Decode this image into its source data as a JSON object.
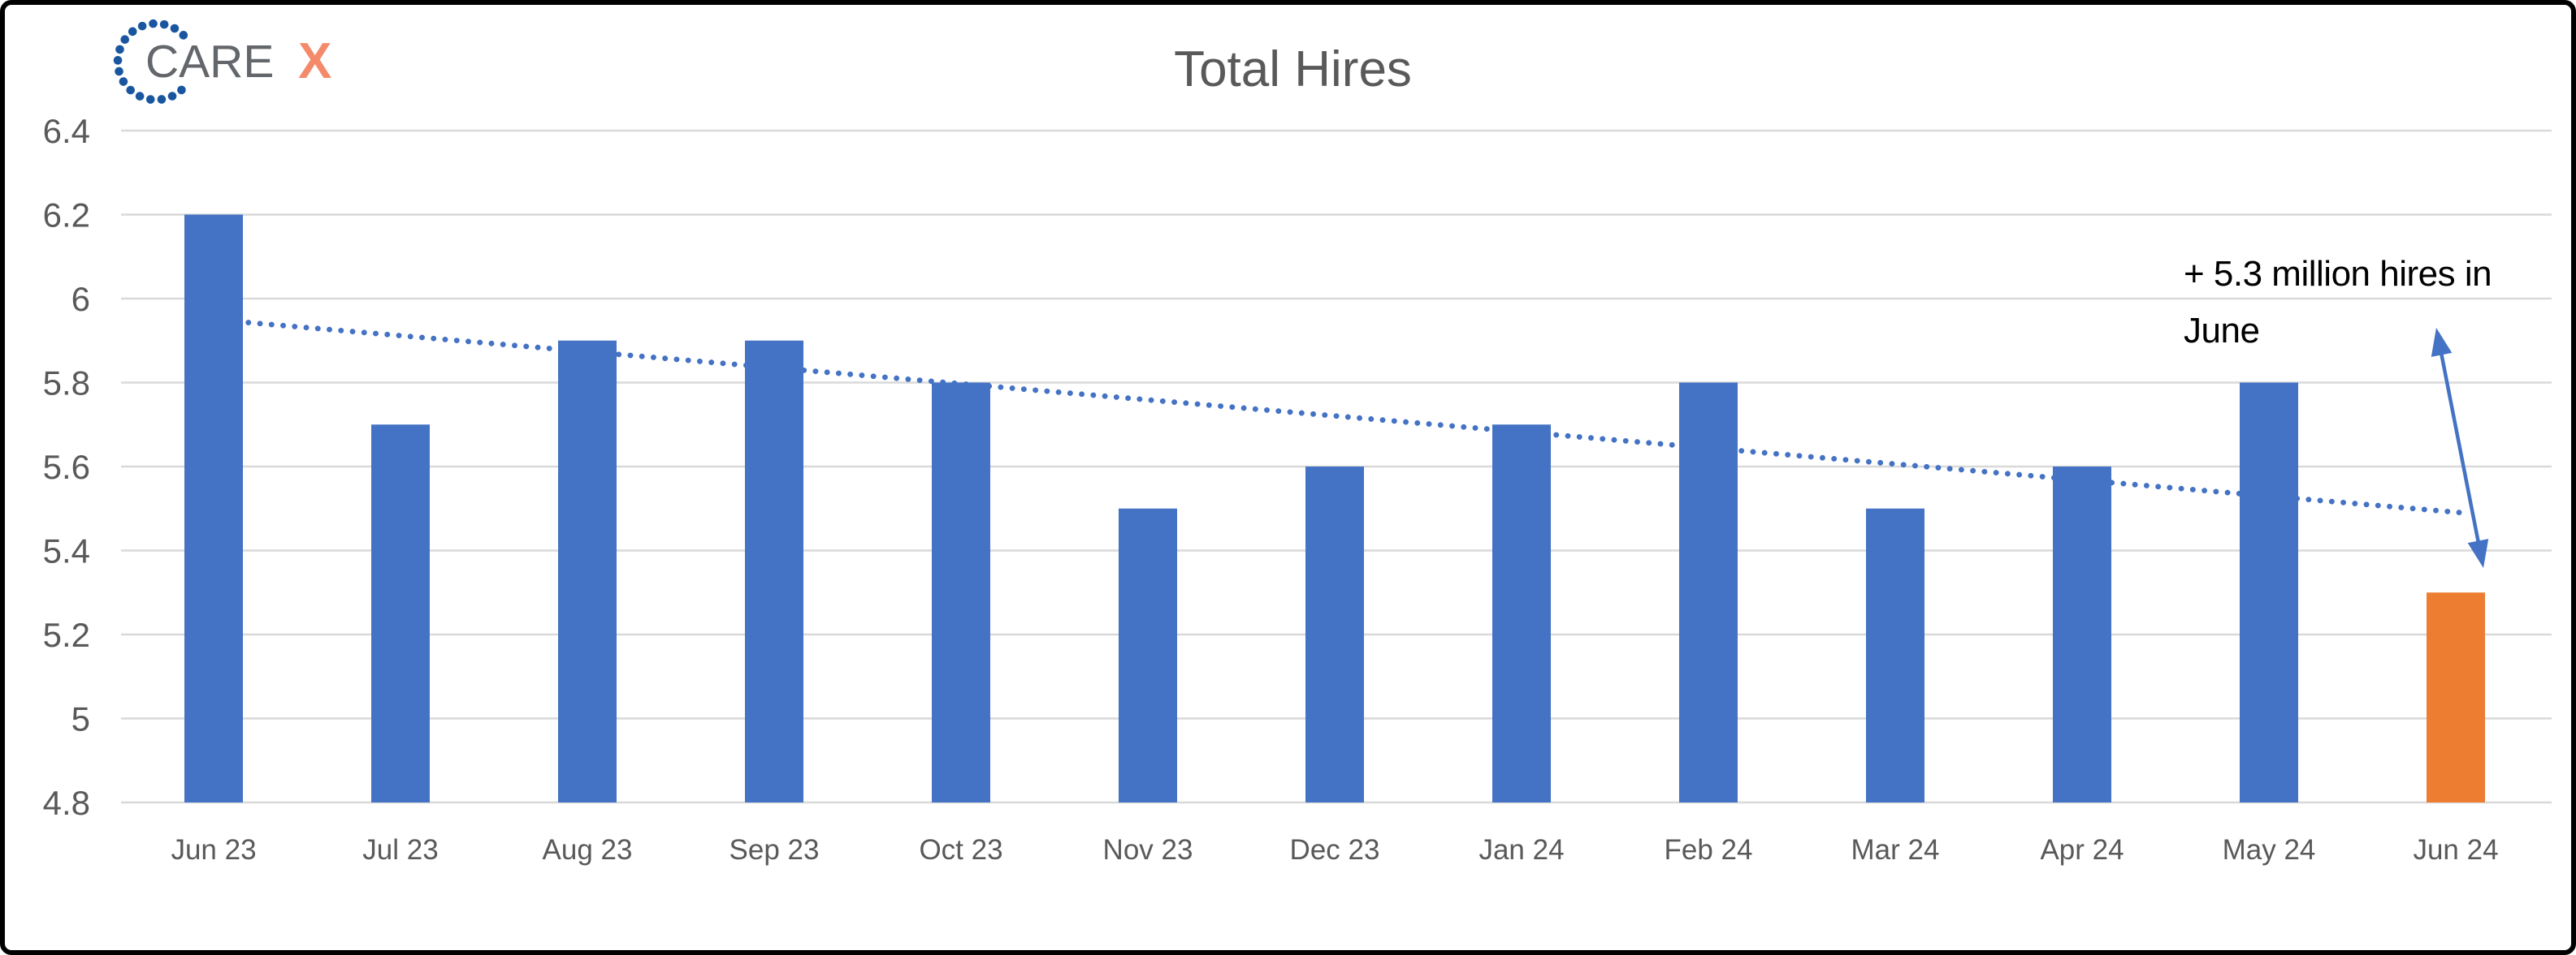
{
  "logo": {
    "text": "CARE",
    "x_letter": "X",
    "dot_color": "#1A56A0",
    "text_color": "#63666A",
    "x_color": "#F48A6A"
  },
  "chart_data": {
    "type": "bar",
    "title": "Total Hires",
    "categories": [
      "Jun 23",
      "Jul 23",
      "Aug 23",
      "Sep 23",
      "Oct 23",
      "Nov 23",
      "Dec 23",
      "Jan 24",
      "Feb 24",
      "Mar 24",
      "Apr 24",
      "May 24",
      "Jun 24"
    ],
    "values": [
      6.2,
      5.7,
      5.9,
      5.9,
      5.8,
      5.5,
      5.6,
      5.7,
      5.8,
      5.5,
      5.6,
      5.8,
      5.3
    ],
    "unit": "millions of hires",
    "highlight_index": 12,
    "bar_color": "#4472C4",
    "highlight_color": "#ED7D31",
    "ylim": [
      4.8,
      6.4
    ],
    "ytick_labels": [
      "6.4",
      "6.2",
      "6",
      "5.8",
      "5.6",
      "5.4",
      "5.2",
      "5",
      "4.8"
    ],
    "grid": true,
    "gridline_color": "#D9D9D9",
    "tick_color": "#595959",
    "title_color": "#595959",
    "legend": "none",
    "trendline": {
      "type": "linear",
      "style": "dotted",
      "color": "#4472C4",
      "start_value": 5.95,
      "end_value": 5.49
    },
    "annotation": {
      "lines": [
        "+ 5.3 million hires in",
        "June"
      ],
      "color": "#000000",
      "arrow_color": "#4472C4",
      "arrow": "double-headed, points from text to Jun 24 bar"
    }
  }
}
